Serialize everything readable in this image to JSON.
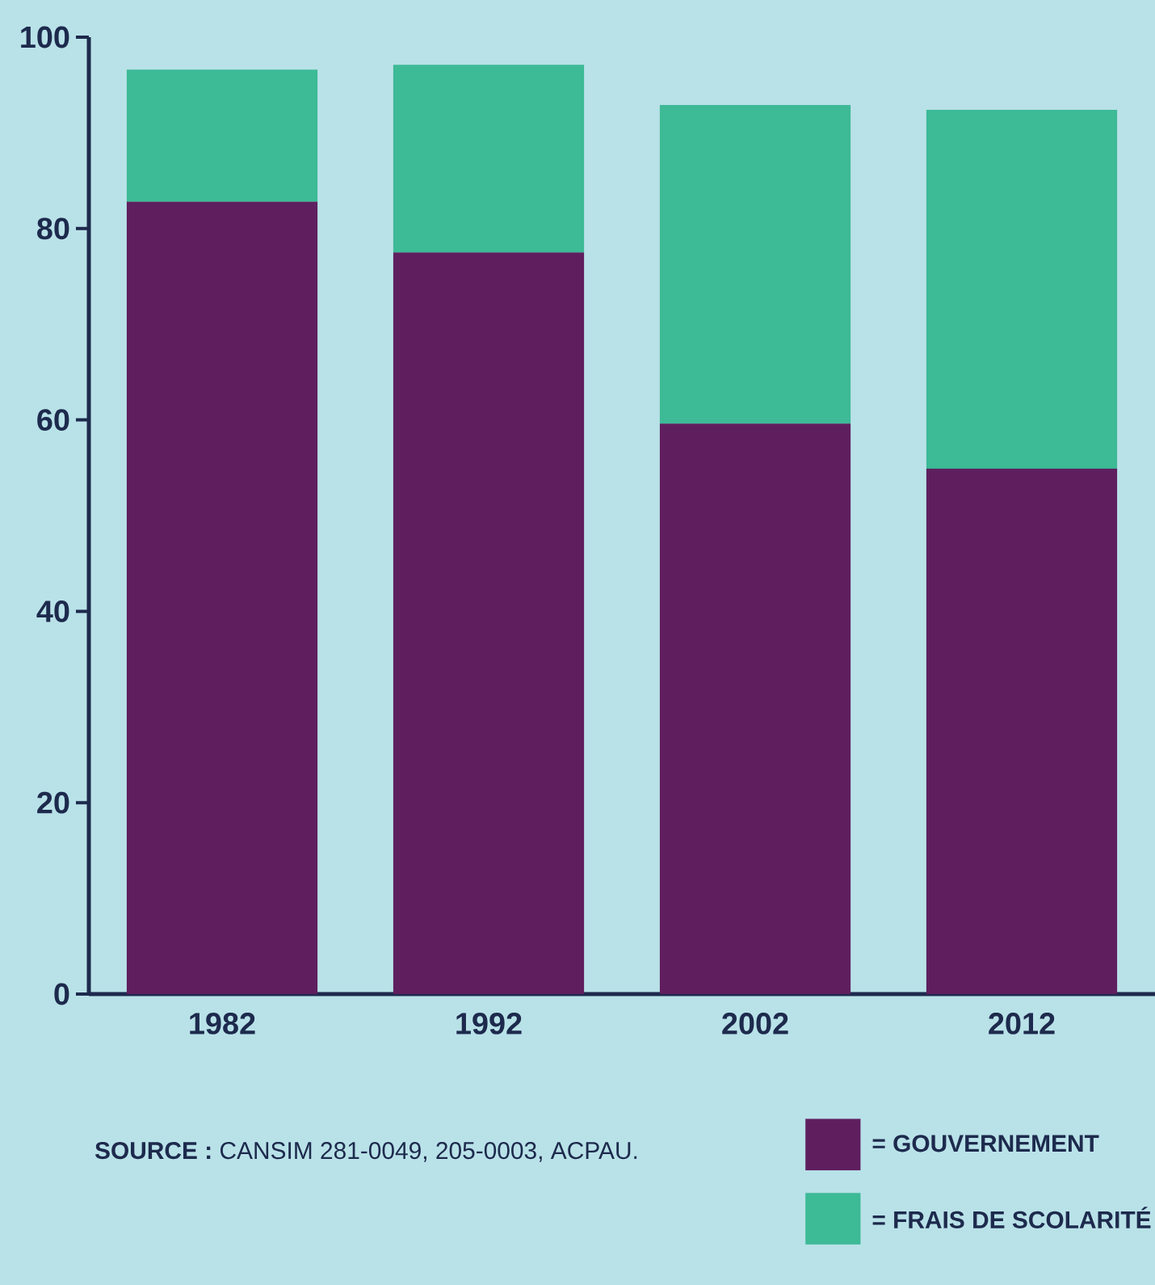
{
  "chart_data": {
    "type": "bar",
    "stacked": true,
    "categories": [
      "1982",
      "1992",
      "2002",
      "2012"
    ],
    "series": [
      {
        "name": "= GOUVERNEMENT",
        "color": "#5f1f5f",
        "values": [
          82.8,
          77.5,
          59.6,
          54.9
        ]
      },
      {
        "name": "= FRAIS DE SCOLARITÉ",
        "color": "#3dba96",
        "values": [
          13.8,
          19.6,
          33.3,
          37.5
        ]
      }
    ],
    "ylim": [
      0,
      100
    ],
    "yticks": [
      0,
      20,
      40,
      60,
      80,
      100
    ],
    "grid": false,
    "legend": "bottom right",
    "annotations": [
      "**SOURCE :** CANSIM 281-0049, 205-0003, ACPAU."
    ]
  }
}
